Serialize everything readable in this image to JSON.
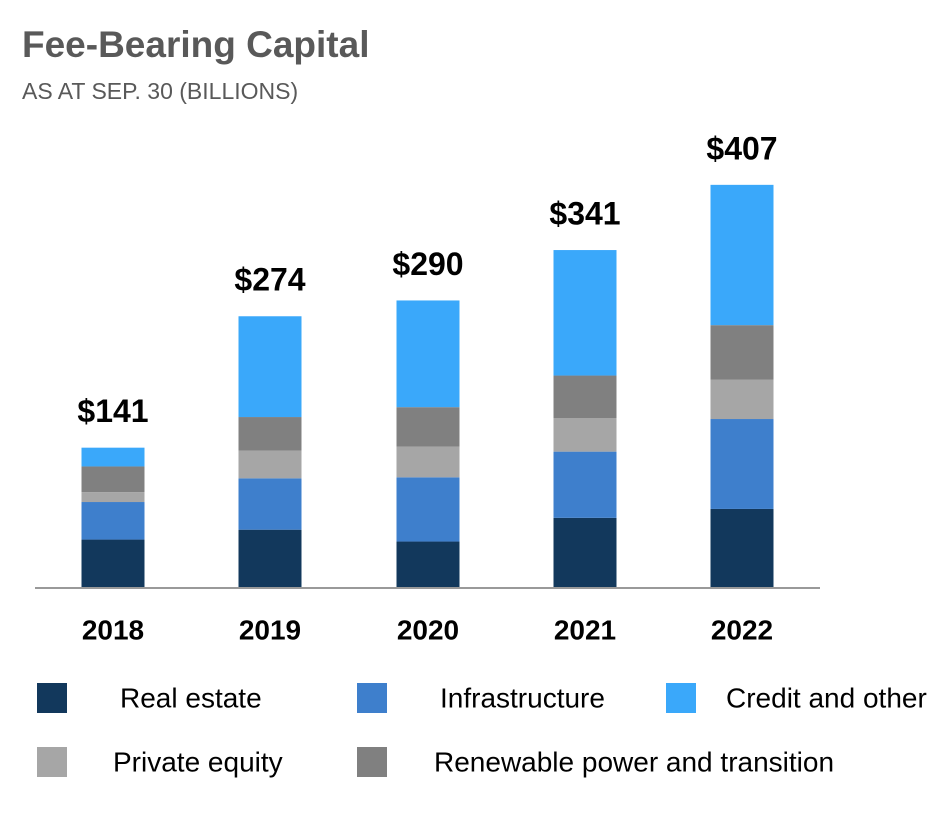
{
  "chart_data": {
    "type": "stacked_bar",
    "title": "Fee-Bearing Capital",
    "subtitle": "AS AT SEP. 30 (BILLIONS)",
    "categories": [
      "2018",
      "2019",
      "2020",
      "2021",
      "2022"
    ],
    "series": [
      {
        "name": "Real estate",
        "color": "#12385c",
        "values": [
          48,
          58,
          46,
          70,
          79
        ]
      },
      {
        "name": "Infrastructure",
        "color": "#3e7fcc",
        "values": [
          38,
          52,
          65,
          67,
          91
        ]
      },
      {
        "name": "Private equity",
        "color": "#a6a6a6",
        "values": [
          10,
          28,
          31,
          34,
          40
        ]
      },
      {
        "name": "Renewable power and transition",
        "color": "#808080",
        "values": [
          26,
          34,
          40,
          43,
          55
        ]
      },
      {
        "name": "Credit and other",
        "color": "#3aa8fa",
        "values": [
          19,
          102,
          108,
          127,
          142
        ]
      }
    ],
    "totals": [
      141,
      274,
      290,
      341,
      407
    ],
    "total_labels": [
      "$141",
      "$274",
      "$290",
      "$341",
      "$407"
    ],
    "ylim": [
      0,
      420
    ]
  }
}
